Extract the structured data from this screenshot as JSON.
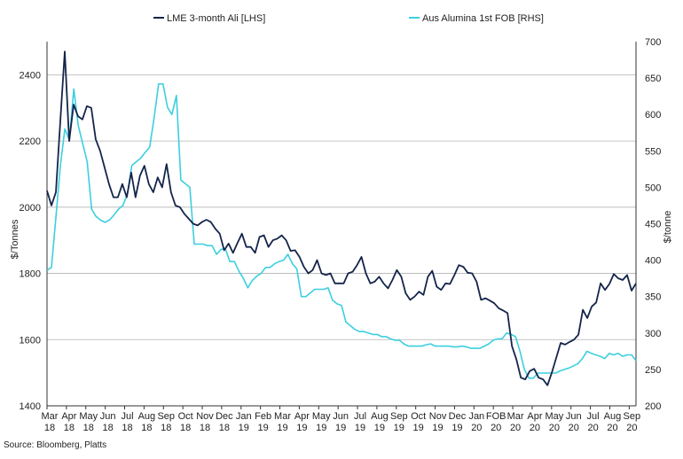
{
  "source_note": "Source: Bloomberg, Platts",
  "chart_data": {
    "type": "line",
    "title": "",
    "ylabel_left": "$/Tonnes",
    "ylabel_right": "$/tonne",
    "ylim_left": [
      1400,
      2500
    ],
    "ylim_right": [
      200,
      700
    ],
    "yticks_left": [
      1400,
      1600,
      1800,
      2000,
      2200,
      2400
    ],
    "yticks_right": [
      200,
      250,
      300,
      350,
      400,
      450,
      500,
      550,
      600,
      650,
      700
    ],
    "grid": "horizontal",
    "legend_position": "top",
    "x_month_labels": [
      [
        "Mar",
        "18"
      ],
      [
        "Apr",
        "18"
      ],
      [
        "May",
        "18"
      ],
      [
        "Jun",
        "18"
      ],
      [
        "Jul",
        "18"
      ],
      [
        "Aug",
        "18"
      ],
      [
        "Sep",
        "18"
      ],
      [
        "Oct",
        "18"
      ],
      [
        "Nov",
        "18"
      ],
      [
        "Dec",
        "18"
      ],
      [
        "Jan",
        "19"
      ],
      [
        "Feb",
        "19"
      ],
      [
        "Mar",
        "19"
      ],
      [
        "Apr",
        "19"
      ],
      [
        "May",
        "19"
      ],
      [
        "Jun",
        "19"
      ],
      [
        "Jul",
        "19"
      ],
      [
        "Aug",
        "19"
      ],
      [
        "Sep",
        "19"
      ],
      [
        "Oct",
        "19"
      ],
      [
        "Nov",
        "19"
      ],
      [
        "Dec",
        "19"
      ],
      [
        "Jan",
        "20"
      ],
      [
        "FOB",
        "20"
      ],
      [
        "Mar",
        "20"
      ],
      [
        "Apr",
        "20"
      ],
      [
        "May",
        "20"
      ],
      [
        "Jun",
        "20"
      ],
      [
        "Jul",
        "20"
      ],
      [
        "Aug",
        "20"
      ],
      [
        "Sep",
        "20"
      ]
    ],
    "series": [
      {
        "name": "LME 3-month Ali [LHS]",
        "axis": "left",
        "color": "#14244b",
        "values": [
          2050,
          2005,
          2045,
          2260,
          2470,
          2200,
          2310,
          2275,
          2265,
          2305,
          2300,
          2205,
          2170,
          2120,
          2070,
          2030,
          2030,
          2070,
          2030,
          2105,
          2030,
          2095,
          2125,
          2070,
          2045,
          2090,
          2060,
          2130,
          2045,
          2005,
          2000,
          1980,
          1965,
          1950,
          1945,
          1955,
          1962,
          1955,
          1935,
          1920,
          1870,
          1890,
          1862,
          1892,
          1920,
          1880,
          1880,
          1862,
          1910,
          1915,
          1880,
          1900,
          1905,
          1915,
          1900,
          1868,
          1870,
          1850,
          1820,
          1800,
          1810,
          1840,
          1800,
          1795,
          1800,
          1770,
          1770,
          1770,
          1800,
          1805,
          1825,
          1850,
          1800,
          1770,
          1775,
          1790,
          1770,
          1755,
          1780,
          1810,
          1790,
          1740,
          1720,
          1730,
          1745,
          1735,
          1790,
          1808,
          1760,
          1750,
          1770,
          1768,
          1795,
          1825,
          1820,
          1802,
          1800,
          1775,
          1720,
          1725,
          1718,
          1710,
          1695,
          1688,
          1680,
          1580,
          1540,
          1485,
          1480,
          1505,
          1512,
          1485,
          1480,
          1462,
          1500,
          1545,
          1590,
          1585,
          1593,
          1600,
          1615,
          1690,
          1665,
          1700,
          1712,
          1770,
          1750,
          1768,
          1798,
          1785,
          1780,
          1795,
          1748,
          1770
        ]
      },
      {
        "name": "Aus Alumina 1st FOB [RHS]",
        "axis": "right",
        "color": "#3ccfe0",
        "values": [
          386,
          390,
          460,
          530,
          580,
          565,
          635,
          585,
          560,
          535,
          470,
          460,
          455,
          452,
          455,
          462,
          470,
          475,
          490,
          530,
          535,
          540,
          548,
          555,
          595,
          642,
          642,
          610,
          600,
          626,
          510,
          505,
          500,
          422,
          422,
          422,
          420,
          420,
          408,
          415,
          415,
          398,
          398,
          385,
          375,
          362,
          372,
          378,
          382,
          390,
          390,
          395,
          398,
          400,
          408,
          395,
          388,
          350,
          350,
          355,
          360,
          360,
          360,
          362,
          345,
          340,
          338,
          315,
          310,
          305,
          302,
          302,
          300,
          298,
          298,
          295,
          295,
          292,
          290,
          290,
          285,
          282,
          282,
          282,
          282,
          284,
          285,
          282,
          282,
          282,
          282,
          281,
          281,
          282,
          281,
          279,
          279,
          279,
          282,
          285,
          290,
          292,
          292,
          300,
          298,
          295,
          275,
          250,
          238,
          238,
          245,
          245,
          245,
          245,
          245,
          248,
          250,
          252,
          255,
          258,
          265,
          275,
          272,
          270,
          268,
          265,
          272,
          270,
          272,
          268,
          270,
          270,
          262
        ]
      }
    ]
  }
}
